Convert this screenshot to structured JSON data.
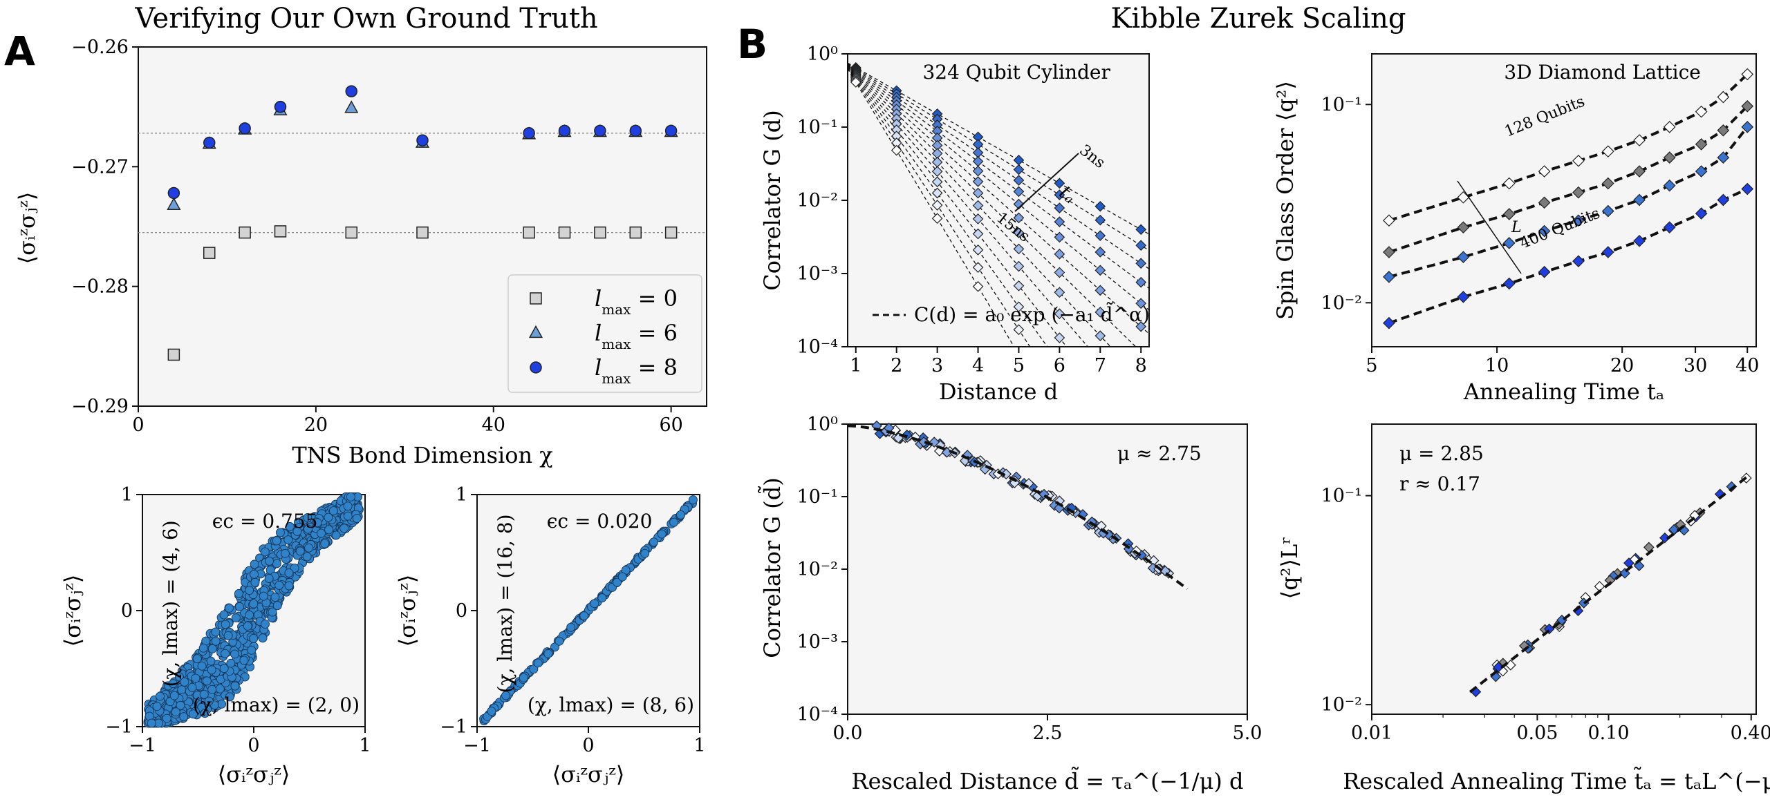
{
  "figure": {
    "title_left": "Verifying Our Own Ground Truth",
    "title_right": "Kibble Zurek Scaling",
    "panel_a": "A",
    "panel_b": "B"
  },
  "chart_data": [
    {
      "id": "tns-convergence",
      "type": "scatter",
      "xlabel": "TNS Bond Dimension χ",
      "ylabel": "⟨σᵢᶻσⱼᶻ⟩",
      "xlim": [
        0,
        64
      ],
      "ylim": [
        -0.29,
        -0.26
      ],
      "xticks": [
        "0",
        "20",
        "40",
        "60"
      ],
      "yticks": [
        "−0.29",
        "−0.28",
        "−0.27",
        "−0.26"
      ],
      "reference_lines": [
        -0.2672,
        -0.2755
      ],
      "legend_position": "lower-right",
      "series": [
        {
          "name": "lmax = 0",
          "marker": "square",
          "color": "#d3d3d3",
          "x": [
            4,
            8,
            12,
            16,
            24,
            32,
            44,
            48,
            52,
            56,
            60
          ],
          "y": [
            -0.2857,
            -0.2772,
            -0.2755,
            -0.2754,
            -0.2755,
            -0.2755,
            -0.2755,
            -0.2755,
            -0.2755,
            -0.2755,
            -0.2755
          ]
        },
        {
          "name": "lmax = 6",
          "marker": "triangle",
          "color": "#6f9fd8",
          "x": [
            4,
            8,
            12,
            16,
            24,
            32,
            44,
            48,
            52,
            56,
            60
          ],
          "y": [
            -0.2732,
            -0.2681,
            -0.2669,
            -0.2653,
            -0.2651,
            -0.268,
            -0.2673,
            -0.2671,
            -0.2671,
            -0.2671,
            -0.2671
          ]
        },
        {
          "name": "lmax = 8",
          "marker": "circle",
          "color": "#1f3fe0",
          "x": [
            4,
            8,
            12,
            16,
            24,
            32,
            44,
            48,
            52,
            56,
            60
          ],
          "y": [
            -0.2722,
            -0.268,
            -0.2668,
            -0.265,
            -0.2637,
            -0.2678,
            -0.2672,
            -0.267,
            -0.267,
            -0.267,
            -0.267
          ]
        }
      ]
    },
    {
      "id": "parity-low",
      "type": "scatter",
      "xlabel": "⟨σᵢᶻσⱼᶻ⟩",
      "ylabel": "⟨σᵢᶻσⱼᶻ⟩",
      "xlim": [
        -1,
        1
      ],
      "ylim": [
        -1,
        1
      ],
      "xticks": [
        "−1",
        "0",
        "1"
      ],
      "yticks": [
        "−1",
        "0",
        "1"
      ],
      "annotations": [
        "ϵc = 0.755",
        "(χ, lmax) = (4, 6)",
        "(χ, lmax) = (2, 0)"
      ]
    },
    {
      "id": "parity-high",
      "type": "scatter",
      "xlabel": "⟨σᵢᶻσⱼᶻ⟩",
      "ylabel": "⟨σᵢᶻσⱼᶻ⟩",
      "xlim": [
        -1,
        1
      ],
      "ylim": [
        -1,
        1
      ],
      "xticks": [
        "−1",
        "0",
        "1"
      ],
      "yticks": [
        "−1",
        "0",
        "1"
      ],
      "annotations": [
        "ϵc = 0.020",
        "(χ, lmax) = (16, 8)",
        "(χ, lmax) = (8, 6)"
      ]
    },
    {
      "id": "correlator-distance",
      "type": "line",
      "title": "324 Qubit Cylinder",
      "xlabel": "Distance d",
      "ylabel": "Correlator G (d)",
      "xlim": [
        0.8,
        8.2
      ],
      "ylim": [
        0.0001,
        1
      ],
      "log_y": true,
      "xticks": [
        "1",
        "2",
        "3",
        "4",
        "5",
        "6",
        "7",
        "8"
      ],
      "yticks": [
        "10⁻⁴",
        "10⁻³",
        "10⁻²",
        "10⁻¹",
        "10⁰"
      ],
      "annotations": [
        "3ns",
        "tₐ",
        "15ns"
      ],
      "legend": "C(d) = a₀ exp (−a₁ d̃^α)",
      "x": [
        1,
        2,
        3,
        4,
        5,
        6,
        7,
        8
      ],
      "slopes_per_unit_distance": [
        -0.316,
        -0.345,
        -0.378,
        -0.413,
        -0.452,
        -0.495,
        -0.542,
        -0.593,
        -0.648,
        -0.71,
        -0.777,
        -0.85,
        -0.93
      ],
      "g_at_d1": [
        0.65,
        0.63,
        0.61,
        0.59,
        0.57,
        0.55,
        0.53,
        0.51,
        0.49,
        0.47,
        0.45,
        0.43,
        0.41
      ]
    },
    {
      "id": "spin-glass-order",
      "type": "line",
      "title": "3D Diamond Lattice",
      "xlabel": "Annealing Time tₐ",
      "ylabel": "Spin Glass Order ⟨q²⟩",
      "log_x": true,
      "log_y": true,
      "xlim": [
        5,
        42
      ],
      "ylim": [
        0.006,
        0.18
      ],
      "xticks": [
        "5",
        "10",
        "20",
        "30",
        "40"
      ],
      "yticks": [
        "10⁻²",
        "10⁻¹"
      ],
      "annotations": [
        "128 Qubits",
        "L",
        "400 Qubits"
      ],
      "series": [
        {
          "name": "128 Qubits",
          "color": "#ffffff",
          "x": [
            5.5,
            8.3,
            10.7,
            13,
            15.7,
            18.5,
            22,
            26,
            31,
            35,
            40
          ],
          "y": [
            0.026,
            0.034,
            0.04,
            0.046,
            0.052,
            0.058,
            0.066,
            0.077,
            0.092,
            0.109,
            0.142
          ]
        },
        {
          "name": "",
          "color": "#7a7a7a",
          "x": [
            5.5,
            8.3,
            10.7,
            13,
            15.7,
            18.5,
            22,
            26,
            31,
            35,
            40
          ],
          "y": [
            0.018,
            0.024,
            0.028,
            0.032,
            0.036,
            0.04,
            0.046,
            0.054,
            0.063,
            0.074,
            0.098
          ]
        },
        {
          "name": "",
          "color": "#3a73d0",
          "x": [
            5.5,
            8.3,
            10.7,
            13,
            15.7,
            18.5,
            22,
            26,
            31,
            35,
            40
          ],
          "y": [
            0.0135,
            0.017,
            0.02,
            0.023,
            0.026,
            0.029,
            0.033,
            0.039,
            0.046,
            0.054,
            0.077
          ]
        },
        {
          "name": "400 Qubits",
          "color": "#1f3fe0",
          "x": [
            5.5,
            8.3,
            10.7,
            13,
            15.7,
            18.5,
            22,
            26,
            31,
            35,
            40
          ],
          "y": [
            0.0079,
            0.0107,
            0.0125,
            0.0143,
            0.0162,
            0.018,
            0.0205,
            0.024,
            0.0282,
            0.033,
            0.0375
          ]
        }
      ]
    },
    {
      "id": "rescaled-correlator",
      "type": "scatter",
      "xlabel": "Rescaled Distance d̃ = τₐ^(−1/μ) d",
      "ylabel": "Correlator G (d̃)",
      "xlim": [
        0,
        5
      ],
      "ylim": [
        0.0001,
        1
      ],
      "log_y": true,
      "xticks": [
        "0.0",
        "2.5",
        "5.0"
      ],
      "yticks": [
        "10⁻⁴",
        "10⁻³",
        "10⁻²",
        "10⁻¹",
        "10⁰"
      ],
      "annotations": [
        "μ ≈ 2.75"
      ],
      "collapse_curve": {
        "a0": 0.95,
        "a1": 0.55,
        "alpha": 1.55
      }
    },
    {
      "id": "rescaled-order",
      "type": "scatter",
      "xlabel": "Rescaled Annealing Time t̃ₐ = tₐL^(−μ)",
      "ylabel": "⟨q²⟩Lʳ",
      "log_x": true,
      "log_y": true,
      "xlim": [
        0.01,
        0.42
      ],
      "ylim": [
        0.009,
        0.22
      ],
      "xticks": [
        "0.01",
        "0.05",
        "0.10",
        "0.40"
      ],
      "yticks": [
        "10⁻²",
        "10⁻¹"
      ],
      "annotations": [
        "μ = 2.85",
        "r ≈ 0.17"
      ]
    }
  ]
}
